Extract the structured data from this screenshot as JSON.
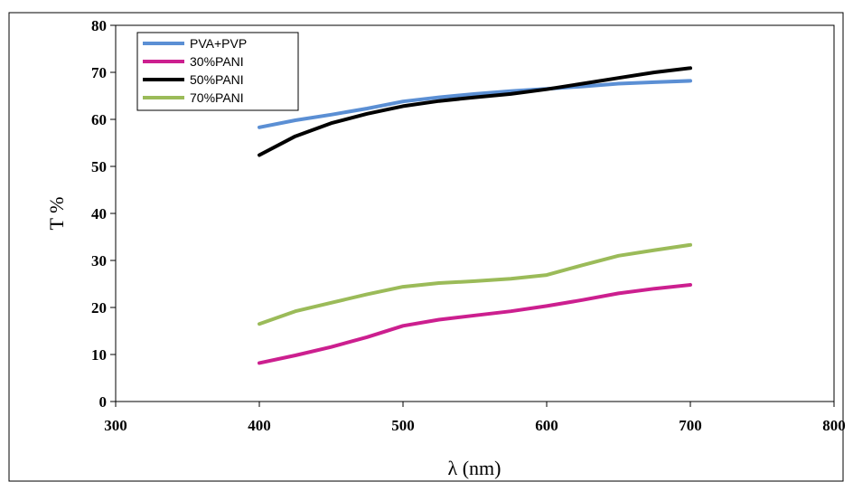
{
  "chart_data": {
    "type": "line",
    "title": "",
    "xlabel": "λ (nm)",
    "ylabel": "T %",
    "xlim": [
      300,
      800
    ],
    "ylim": [
      0,
      80
    ],
    "xticks": [
      300,
      400,
      500,
      600,
      700,
      800
    ],
    "yticks": [
      0,
      10,
      20,
      30,
      40,
      50,
      60,
      70,
      80
    ],
    "grid": false,
    "legend": "top-left",
    "series": [
      {
        "name": "PVA+PVP",
        "color": "#5b8fd4",
        "x": [
          400,
          425,
          450,
          475,
          500,
          525,
          550,
          575,
          600,
          625,
          650,
          675,
          700
        ],
        "y": [
          58.3,
          59.8,
          61.0,
          62.3,
          63.8,
          64.7,
          65.4,
          66.0,
          66.5,
          67.0,
          67.6,
          67.9,
          68.2
        ]
      },
      {
        "name": "30%PANI",
        "color": "#cc1f8f",
        "x": [
          400,
          425,
          450,
          475,
          500,
          525,
          550,
          575,
          600,
          625,
          650,
          675,
          700
        ],
        "y": [
          8.2,
          9.8,
          11.6,
          13.7,
          16.1,
          17.4,
          18.3,
          19.2,
          20.3,
          21.6,
          23.0,
          24.0,
          24.8
        ]
      },
      {
        "name": "50%PANI",
        "color": "#000000",
        "x": [
          400,
          425,
          450,
          475,
          500,
          525,
          550,
          575,
          600,
          625,
          650,
          675,
          700
        ],
        "y": [
          52.4,
          56.4,
          59.2,
          61.2,
          62.8,
          63.9,
          64.7,
          65.4,
          66.4,
          67.6,
          68.8,
          70.0,
          70.9
        ]
      },
      {
        "name": "70%PANI",
        "color": "#9bbb59",
        "x": [
          400,
          425,
          450,
          475,
          500,
          525,
          550,
          575,
          600,
          625,
          650,
          675,
          700
        ],
        "y": [
          16.5,
          19.2,
          21.0,
          22.8,
          24.4,
          25.2,
          25.6,
          26.1,
          26.9,
          29.0,
          31.0,
          32.2,
          33.3
        ]
      }
    ]
  }
}
